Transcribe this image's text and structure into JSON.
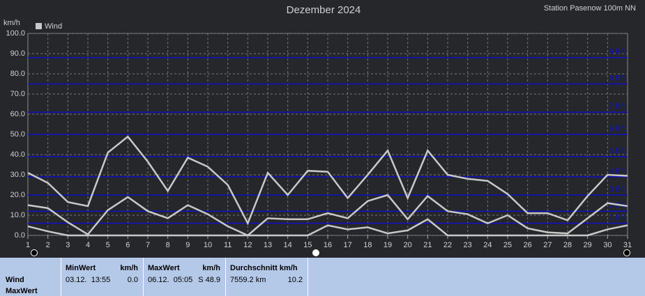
{
  "chart_data": {
    "type": "line",
    "title": "Dezember 2024",
    "subtitle": "Station Pasenow 100m NN",
    "y_label": "km/h",
    "x": [
      1,
      2,
      3,
      4,
      5,
      6,
      7,
      8,
      9,
      10,
      11,
      12,
      13,
      14,
      15,
      16,
      17,
      18,
      19,
      20,
      21,
      22,
      23,
      24,
      25,
      26,
      27,
      28,
      29,
      30,
      31
    ],
    "xlim": [
      1,
      31
    ],
    "xticks": [
      1,
      2,
      3,
      4,
      5,
      6,
      7,
      8,
      9,
      10,
      11,
      12,
      13,
      14,
      15,
      16,
      17,
      18,
      19,
      20,
      21,
      22,
      23,
      24,
      25,
      26,
      27,
      28,
      29,
      30,
      31
    ],
    "ylim": [
      0,
      100
    ],
    "yticks": [
      {
        "value": 0,
        "label": "0.0"
      },
      {
        "value": 10,
        "label": "10.0"
      },
      {
        "value": 20,
        "label": "20.0"
      },
      {
        "value": 30,
        "label": "30.0"
      },
      {
        "value": 40,
        "label": "40.0"
      },
      {
        "value": 50,
        "label": "50.0"
      },
      {
        "value": 60,
        "label": "60.0"
      },
      {
        "value": 70,
        "label": "70.0"
      },
      {
        "value": 80,
        "label": "80.0"
      },
      {
        "value": 90,
        "label": "90.0"
      },
      {
        "value": 100,
        "label": "100.0"
      }
    ],
    "grid": true,
    "legend": "upper left",
    "series": [
      {
        "name": "Wind",
        "color": "#c8c8c8",
        "values": [
          31,
          26,
          16.5,
          14.5,
          41,
          48.9,
          36.5,
          22,
          38.5,
          34,
          25,
          6,
          31,
          20,
          32,
          31.5,
          18.5,
          30,
          42,
          18.5,
          42,
          30,
          28,
          27,
          20.5,
          11,
          11,
          7.5,
          19.5,
          30,
          29.5
        ]
      },
      {
        "color": "#c8c8c8",
        "values": [
          15,
          13.5,
          6.5,
          0.5,
          12.5,
          19,
          12,
          8.5,
          15,
          10.5,
          4.5,
          0,
          8.5,
          8,
          8,
          11,
          8.5,
          17,
          20,
          8,
          19.5,
          12,
          10.5,
          6,
          10,
          3.5,
          1.5,
          1,
          8.5,
          16,
          14.5
        ]
      },
      {
        "color": "#c8c8c8",
        "values": [
          4.5,
          2,
          0,
          0,
          0,
          0,
          0,
          0,
          0,
          0,
          0,
          0,
          0,
          0,
          0,
          5,
          3,
          4,
          1,
          2.5,
          8,
          0,
          0,
          0,
          0,
          0,
          0,
          0,
          0,
          3,
          5
        ]
      }
    ],
    "bft_color": "#1010c8",
    "bft": [
      {
        "value": 6,
        "label": "1 Bft"
      },
      {
        "value": 12,
        "label": "2 Bft"
      },
      {
        "value": 20,
        "label": "3 Bft"
      },
      {
        "value": 29,
        "label": "4 Bft"
      },
      {
        "value": 39,
        "label": "5 Bft"
      },
      {
        "value": 50,
        "label": "6 Bft"
      },
      {
        "value": 61,
        "label": "7 Bft"
      },
      {
        "value": 75,
        "label": "8 Bft"
      },
      {
        "value": 88,
        "label": "9 Bft"
      }
    ]
  },
  "table": {
    "row_labels": [
      "Wind",
      "MaxWert"
    ],
    "blocks": [
      {
        "head": "MinWert",
        "unit": "km/h",
        "time": "03.12.  13:55",
        "value": "0.0"
      },
      {
        "head": "MaxWert",
        "unit": "km/h",
        "time": "06.12.  05:05",
        "value": "S 48.9"
      },
      {
        "head": "Durchschnitt km/h",
        "unit": "",
        "time": "7559.2 km",
        "value": "10.2"
      }
    ]
  }
}
